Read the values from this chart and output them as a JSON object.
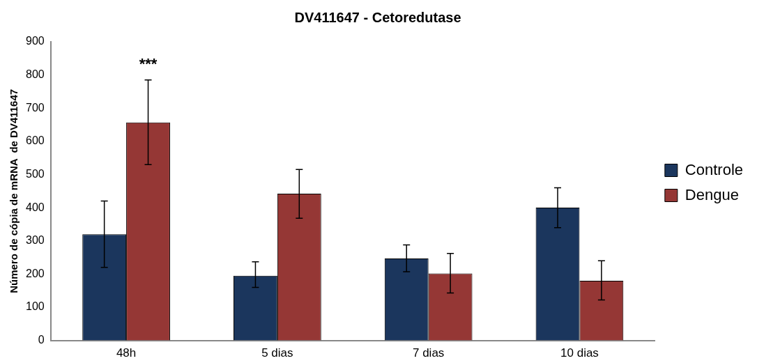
{
  "chart_data": {
    "type": "bar",
    "title": "DV411647 - Cetoredutase",
    "ylabel": "Número de cópia de mRNA  de DV411647",
    "categories": [
      "48h",
      "5 dias",
      "7 dias",
      "10 dias"
    ],
    "series": [
      {
        "name": "Controle",
        "color": "#1b365d",
        "values": [
          320,
          195,
          247,
          400
        ],
        "errors": [
          [
            220,
            420
          ],
          [
            160,
            237
          ],
          [
            207,
            288
          ],
          [
            340,
            460
          ]
        ]
      },
      {
        "name": "Dengue",
        "color": "#953735",
        "values": [
          657,
          442,
          202,
          180
        ],
        "errors": [
          [
            530,
            785
          ],
          [
            368,
            515
          ],
          [
            143,
            262
          ],
          [
            122,
            240
          ]
        ]
      }
    ],
    "ylim": [
      0,
      900
    ],
    "yticks": [
      0,
      100,
      200,
      300,
      400,
      500,
      600,
      700,
      800,
      900
    ],
    "annotations": [
      "***"
    ],
    "grid": false,
    "legend": "right"
  }
}
